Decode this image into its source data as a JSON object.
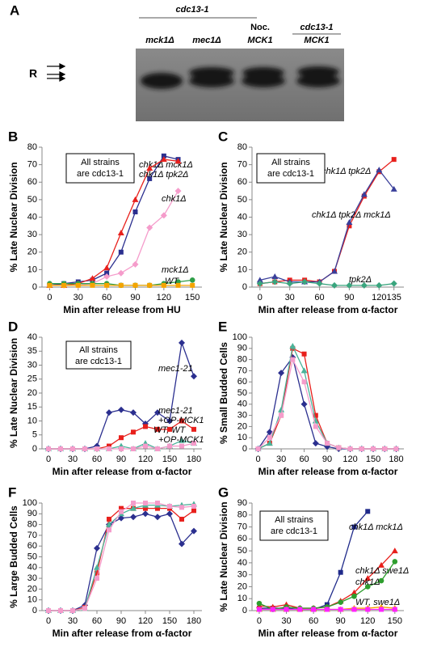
{
  "gel": {
    "panel": "A",
    "group_top": "cdc13-1",
    "group_noc": "Noc.",
    "group_right": "cdc13-1",
    "lanes": [
      "mck1Δ",
      "mec1Δ",
      "MCK1",
      "MCK1"
    ],
    "marker": "R"
  },
  "chart_data": [
    {
      "type": "line",
      "panel": "B",
      "xlabel": "Min after release from HU",
      "ylabel": "% Late Nuclear Division",
      "note": [
        "All strains",
        "are cdc13-1"
      ],
      "x": [
        0,
        15,
        30,
        45,
        60,
        75,
        90,
        105,
        120,
        135,
        150
      ],
      "xlim": [
        -8,
        160
      ],
      "xticks": [
        0,
        30,
        60,
        90,
        120,
        150
      ],
      "ylim": [
        0,
        80
      ],
      "yticks": [
        0,
        10,
        20,
        30,
        40,
        50,
        60,
        70,
        80
      ],
      "series": [
        {
          "name": "chk1Δ mck1Δ",
          "color": "#2b2f8f",
          "marker": "square",
          "values": [
            1,
            2,
            3,
            4,
            8,
            20,
            43,
            62,
            75,
            73,
            null
          ]
        },
        {
          "name": "chk1Δ tpk2Δ",
          "color": "#e8201c",
          "marker": "triangle",
          "values": [
            1,
            1,
            2,
            5,
            11,
            31,
            50,
            68,
            73,
            72,
            null
          ]
        },
        {
          "name": "chk1Δ",
          "color": "#f59ccb",
          "marker": "diamond",
          "values": [
            1,
            1,
            1,
            2,
            6,
            8,
            13,
            34,
            41,
            55,
            null
          ]
        },
        {
          "name": "mck1Δ",
          "color": "#2e9e48",
          "marker": "circle",
          "values": [
            2,
            2,
            2,
            2,
            2,
            1,
            1,
            1,
            2,
            3,
            4
          ]
        },
        {
          "name": "WT",
          "color": "#f5a400",
          "marker": "square",
          "values": [
            1,
            1,
            1,
            1,
            1,
            1,
            1,
            1,
            1,
            1,
            1
          ]
        }
      ]
    },
    {
      "type": "line",
      "panel": "C",
      "xlabel": "Min after release from α-factor",
      "ylabel": "% Late Nuclear Division",
      "note": [
        "All strains",
        "are cdc13-1"
      ],
      "x": [
        0,
        15,
        30,
        45,
        60,
        75,
        90,
        105,
        120,
        135
      ],
      "xlim": [
        -8,
        145
      ],
      "xticks": [
        0,
        30,
        60,
        90,
        120,
        135
      ],
      "ylim": [
        0,
        80
      ],
      "yticks": [
        0,
        10,
        20,
        30,
        40,
        50,
        60,
        70,
        80
      ],
      "series": [
        {
          "name": "chk1Δ tpk2Δ",
          "color": "#e8201c",
          "marker": "square",
          "values": [
            2,
            3,
            4,
            4,
            3,
            9,
            35,
            52,
            66,
            73
          ]
        },
        {
          "name": "chk1Δ tpk2Δ mck1Δ",
          "color": "#3a3f9a",
          "marker": "triangle",
          "values": [
            4,
            6,
            3,
            3,
            3,
            9,
            37,
            53,
            67,
            56
          ]
        },
        {
          "name": "tpk2Δ",
          "color": "#3aa57e",
          "marker": "diamond",
          "values": [
            2,
            3,
            2,
            3,
            2,
            1,
            1,
            1,
            1,
            2
          ]
        }
      ]
    },
    {
      "type": "line",
      "panel": "D",
      "xlabel": "Min after release from α-factor",
      "ylabel": "% Late Nuclear Division",
      "note": [
        "All strains",
        "are cdc13-1"
      ],
      "annotations": [
        "mec1-21",
        "mec1-21",
        "+OP-MCK1",
        "WT, WT",
        "+OP-MCK1"
      ],
      "x": [
        0,
        15,
        30,
        45,
        60,
        75,
        90,
        105,
        120,
        135,
        150,
        165,
        180
      ],
      "xlim": [
        -8,
        190
      ],
      "xticks": [
        0,
        30,
        60,
        90,
        120,
        150,
        180
      ],
      "ylim": [
        0,
        40
      ],
      "yticks": [
        0,
        5,
        10,
        15,
        20,
        25,
        30,
        35,
        40
      ],
      "series": [
        {
          "color": "#2b2f8f",
          "marker": "diamond",
          "values": [
            0,
            0,
            0,
            0,
            1,
            13,
            14,
            13,
            9,
            13,
            10,
            38,
            26
          ]
        },
        {
          "color": "#e8201c",
          "marker": "square",
          "values": [
            0,
            0,
            0,
            0,
            0,
            1,
            4,
            6,
            8,
            7,
            7,
            10,
            7
          ]
        },
        {
          "color": "#4bb39a",
          "marker": "triangle",
          "values": [
            0,
            0,
            0,
            0,
            0,
            0,
            1,
            0,
            2,
            0,
            1,
            3,
            2
          ]
        },
        {
          "color": "#f59ccb",
          "marker": "square",
          "values": [
            0,
            0,
            0,
            0,
            0,
            0,
            0,
            0,
            1,
            0,
            1,
            1,
            2
          ]
        }
      ]
    },
    {
      "type": "line",
      "panel": "E",
      "xlabel": "Min after release from α-factor",
      "ylabel": "% Small Budded Cells",
      "x": [
        0,
        15,
        30,
        45,
        60,
        75,
        90,
        105,
        120,
        135,
        150,
        165,
        180
      ],
      "xlim": [
        -8,
        190
      ],
      "xticks": [
        0,
        30,
        60,
        90,
        120,
        150,
        180
      ],
      "ylim": [
        0,
        100
      ],
      "yticks": [
        0,
        10,
        20,
        30,
        40,
        50,
        60,
        70,
        80,
        90,
        100
      ],
      "series": [
        {
          "color": "#2b2f8f",
          "marker": "diamond",
          "values": [
            0,
            15,
            68,
            82,
            40,
            5,
            2,
            0,
            0,
            0,
            0,
            0,
            0
          ]
        },
        {
          "color": "#e8201c",
          "marker": "square",
          "values": [
            0,
            5,
            30,
            90,
            85,
            30,
            5,
            1,
            0,
            0,
            0,
            0,
            0
          ]
        },
        {
          "color": "#4bb39a",
          "marker": "triangle",
          "values": [
            0,
            5,
            35,
            92,
            70,
            25,
            5,
            1,
            0,
            0,
            0,
            0,
            0
          ]
        },
        {
          "color": "#f59ccb",
          "marker": "square",
          "values": [
            0,
            10,
            30,
            80,
            60,
            20,
            5,
            1,
            0,
            0,
            0,
            0,
            0
          ]
        }
      ]
    },
    {
      "type": "line",
      "panel": "F",
      "xlabel": "Min after release from α-factor",
      "ylabel": "% Large Budded Cells",
      "x": [
        0,
        15,
        30,
        45,
        60,
        75,
        90,
        105,
        120,
        135,
        150,
        165,
        180
      ],
      "xlim": [
        -8,
        190
      ],
      "xticks": [
        0,
        30,
        60,
        90,
        120,
        150,
        180
      ],
      "ylim": [
        0,
        100
      ],
      "yticks": [
        0,
        10,
        20,
        30,
        40,
        50,
        60,
        70,
        80,
        90,
        100
      ],
      "series": [
        {
          "color": "#2b2f8f",
          "marker": "diamond",
          "values": [
            0,
            0,
            0,
            5,
            58,
            80,
            86,
            87,
            90,
            87,
            90,
            62,
            74
          ]
        },
        {
          "color": "#e8201c",
          "marker": "square",
          "values": [
            0,
            0,
            0,
            3,
            35,
            85,
            95,
            95,
            95,
            95,
            95,
            85,
            93
          ]
        },
        {
          "color": "#4bb39a",
          "marker": "triangle",
          "values": [
            0,
            0,
            0,
            2,
            40,
            80,
            90,
            95,
            98,
            98,
            97,
            98,
            99
          ]
        },
        {
          "color": "#f59ccb",
          "marker": "square",
          "values": [
            0,
            0,
            0,
            2,
            30,
            75,
            92,
            100,
            100,
            100,
            97,
            96,
            97
          ]
        }
      ]
    },
    {
      "type": "line",
      "panel": "G",
      "xlabel": "Min after release from α-factor",
      "ylabel": "% Late Nuclear Division",
      "note": [
        "All strains",
        "are cdc13-1"
      ],
      "annotations": [
        "WT, swe1Δ"
      ],
      "x": [
        0,
        15,
        30,
        45,
        60,
        75,
        90,
        105,
        120,
        135,
        150
      ],
      "xlim": [
        -8,
        160
      ],
      "xticks": [
        0,
        30,
        60,
        90,
        120,
        150
      ],
      "ylim": [
        0,
        90
      ],
      "yticks": [
        0,
        10,
        20,
        30,
        40,
        50,
        60,
        70,
        80,
        90
      ],
      "series": [
        {
          "name": "chk1Δ mck1Δ",
          "color": "#1f2a8a",
          "marker": "square",
          "values": [
            2,
            2,
            2,
            1,
            1,
            5,
            32,
            70,
            83,
            null,
            null
          ]
        },
        {
          "name": "chk1Δ swe1Δ",
          "color": "#e8201c",
          "marker": "triangle",
          "values": [
            4,
            3,
            5,
            2,
            2,
            3,
            8,
            15,
            27,
            38,
            50
          ]
        },
        {
          "name": "chk1Δ",
          "color": "#2e9e2e",
          "marker": "circle",
          "values": [
            6,
            1,
            3,
            2,
            2,
            3,
            7,
            12,
            20,
            25,
            41
          ]
        },
        {
          "color": "#f5a400",
          "marker": "triangle",
          "values": [
            1,
            1,
            1,
            1,
            1,
            1,
            1,
            2,
            2,
            3,
            2
          ]
        },
        {
          "color": "#ff22ff",
          "marker": "square",
          "values": [
            1,
            1,
            1,
            1,
            1,
            1,
            1,
            1,
            1,
            1,
            1
          ]
        }
      ]
    }
  ]
}
